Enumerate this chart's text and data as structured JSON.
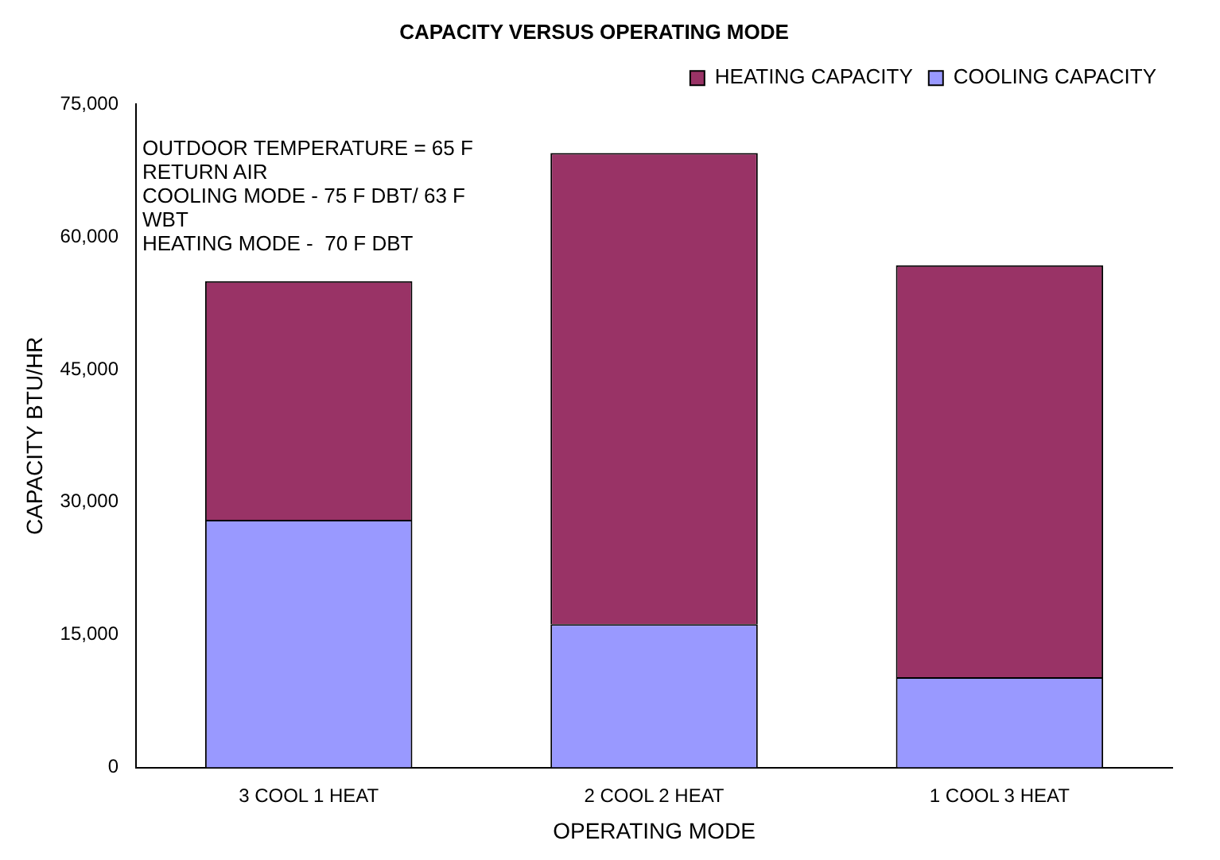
{
  "chart_data": {
    "type": "bar",
    "title": "CAPACITY VERSUS OPERATING MODE",
    "xlabel": "OPERATING MODE",
    "ylabel": "CAPACITY BTU/HR",
    "categories": [
      "3 COOL 1 HEAT",
      "2 COOL 2 HEAT",
      "1 COOL 3 HEAT"
    ],
    "series": [
      {
        "name": "COOLING CAPACITY",
        "color": "#9999ff",
        "values": [
          28000,
          16200,
          10200
        ]
      },
      {
        "name": "HEATING CAPACITY",
        "color": "#993366",
        "values": [
          27000,
          53300,
          46600
        ]
      }
    ],
    "stacked": true,
    "ylim": [
      0,
      75000
    ],
    "yticks": [
      0,
      {
        "value": 15000,
        "label": "15,000"
      },
      {
        "value": 30000,
        "label": "30,000"
      },
      {
        "value": 45000,
        "label": "45,000"
      },
      {
        "value": 60000,
        "label": "60,000"
      },
      {
        "value": 75000,
        "label": "75,000"
      }
    ],
    "grid": false,
    "legend": "top right",
    "annotations": [
      "OUTDOOR TEMPERATURE = 65 F",
      "RETURN AIR",
      "COOLING MODE - 75 F DBT/ 63 F WBT",
      "HEATING MODE -  70 F DBT"
    ]
  }
}
